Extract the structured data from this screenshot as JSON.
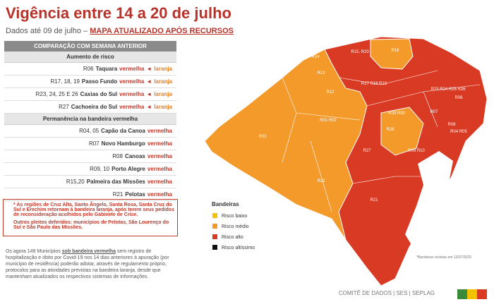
{
  "header": {
    "title": "Vigência entre 14 a 20 de julho",
    "subtitle": "Dados até 09 de julho –",
    "link": "MAPA ATUALIZADO APÓS RECURSOS"
  },
  "table": {
    "header": "COMPARAÇÃO COM SEMANA ANTERIOR",
    "sections": [
      {
        "title": "Aumento de risco",
        "rows": [
          [
            "R06",
            "Taquara",
            "vermelha",
            "◄",
            "laranja"
          ],
          [
            "R17, 18, 19",
            "Passo Fundo",
            "vermelha",
            "◄",
            "laranja"
          ],
          [
            "R23, 24, 25 E 26",
            "Caxias do Sul",
            "vermelha",
            "◄",
            "laranja"
          ],
          [
            "R27",
            "Cachoeira do Sul",
            "vermelha",
            "◄",
            "laranja"
          ]
        ]
      },
      {
        "title": "Permanência na bandeira vermelha",
        "rows": [
          [
            "R04, 05",
            "Capão da Canoa",
            "vermelha"
          ],
          [
            "R07",
            "Novo Hamburgo",
            "vermelha"
          ],
          [
            "R08",
            "Canoas",
            "vermelha"
          ],
          [
            "R09, 10",
            "Porto Alegre",
            "vermelha"
          ],
          [
            "R15,20",
            "Palmeira das Missões",
            "vermelha"
          ],
          [
            "R21",
            "Pelotas",
            "vermelha"
          ]
        ]
      }
    ]
  },
  "note": [
    "* As regiões de Cruz Alta, Santo Ângelo, Santa Rosa, Santa Cruz do Sul e Erechim retornam à bandeira laranja, após terem seus pedidos de reconsideração acolhidos pelo Gabinete de Crise.",
    "Outros pleitos deferidos: municípios de Pelotas, São Lourenço do Sul e São Paulo das Missões."
  ],
  "paragraph": [
    "Os agora 149 Municípios",
    "sob bandeira vermelha",
    "sem registro de hospitalização e óbito por Covid-19 nos 14 dias anteriores à apuração (por município de residência) poderão adotar, através de regulamento próprio, protocolos para as atividades previstas na bandeira laranja, desde que mantenham atualizados os respectivos sistemas de informações."
  ],
  "legend": {
    "title": "Bandeiras",
    "items": [
      "Risco baixo",
      "Risco médio",
      "Risco alto",
      "Risco altíssimo"
    ]
  },
  "map": {
    "regions": [
      "R14",
      "R15, R20",
      "R16",
      "R13",
      "R12",
      "R17 R18 R19",
      "R23 R24 R25 R26",
      "R03",
      "R01 R02",
      "R29 R30",
      "R28",
      "R07",
      "R08",
      "R04 R05",
      "R27",
      "R09 R10",
      "R22",
      "R21",
      "R06"
    ]
  },
  "footnote": "*Bandeiras revistas em 13/07/2020",
  "footer": "COMITÊ DE DADOS | SES | SEPLAG"
}
